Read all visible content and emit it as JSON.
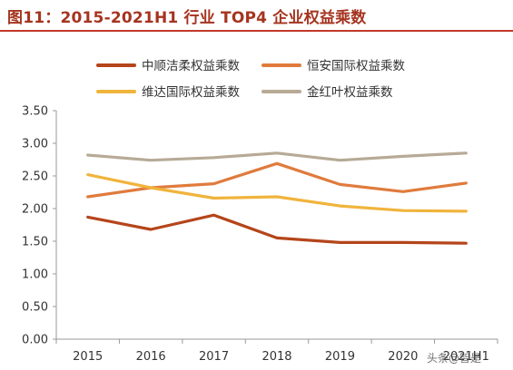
{
  "header": {
    "title": "图11：2015-2021H1 行业 TOP4 企业权益乘数"
  },
  "watermark": "头条@智是",
  "chart_data": {
    "type": "line",
    "title": "",
    "xlabel": "",
    "ylabel": "",
    "categories": [
      "2015",
      "2016",
      "2017",
      "2018",
      "2019",
      "2020",
      "2021H1"
    ],
    "ylim": [
      0,
      3.5
    ],
    "yticks": [
      "0.00",
      "0.50",
      "1.00",
      "1.50",
      "2.00",
      "2.50",
      "3.00",
      "3.50"
    ],
    "grid": false,
    "legend_position": "top",
    "series": [
      {
        "name": "中顺洁柔权益乘数",
        "color": "#b5451b",
        "values": [
          1.87,
          1.68,
          1.9,
          1.55,
          1.48,
          1.48,
          1.47
        ]
      },
      {
        "name": "恒安国际权益乘数",
        "color": "#e07b3c",
        "values": [
          2.18,
          2.32,
          2.38,
          2.69,
          2.37,
          2.26,
          2.39
        ]
      },
      {
        "name": "维达国际权益乘数",
        "color": "#f0b43c",
        "values": [
          2.52,
          2.32,
          2.16,
          2.18,
          2.04,
          1.97,
          1.96
        ]
      },
      {
        "name": "金红叶权益乘数",
        "color": "#b7aa96",
        "values": [
          2.82,
          2.74,
          2.78,
          2.85,
          2.74,
          2.8,
          2.85
        ]
      }
    ]
  }
}
